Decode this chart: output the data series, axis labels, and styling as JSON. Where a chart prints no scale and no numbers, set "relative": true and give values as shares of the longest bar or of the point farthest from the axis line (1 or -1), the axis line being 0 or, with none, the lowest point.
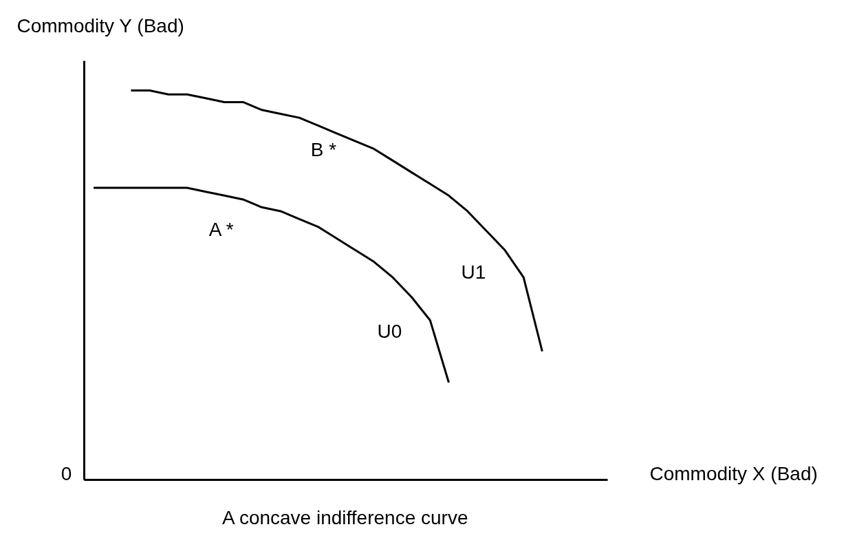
{
  "chart_data": {
    "type": "line",
    "relative": true,
    "title": "A concave indifference curve",
    "xlabel": "Commodity X (Bad)",
    "ylabel": "Commodity Y (Bad)",
    "grid": false,
    "marker": "none",
    "line_style": "solid",
    "categories": [
      null,
      null,
      null,
      null,
      null,
      null,
      null,
      null,
      null,
      null,
      null,
      null,
      null,
      null,
      null,
      null,
      null,
      null,
      null,
      null,
      null,
      null,
      null,
      null,
      null,
      null,
      null,
      null
    ],
    "series": [
      {
        "color": "#000000",
        "values": [
          0.75,
          0.75,
          0.75,
          0.75,
          0.75,
          0.75,
          0.74,
          0.73,
          0.72,
          0.7,
          0.69,
          0.67,
          0.65,
          0.62,
          0.59,
          0.56,
          0.52,
          0.47,
          0.41,
          0.25,
          null,
          null,
          null,
          null,
          null,
          null,
          null,
          null
        ]
      },
      {
        "color": "#000000",
        "values": [
          null,
          null,
          1.0,
          1.0,
          0.99,
          0.99,
          0.98,
          0.97,
          0.97,
          0.95,
          0.94,
          0.93,
          0.91,
          0.89,
          0.87,
          0.85,
          0.82,
          0.79,
          0.76,
          0.73,
          0.69,
          0.64,
          0.59,
          0.52,
          0.33,
          null,
          null,
          null
        ]
      }
    ],
    "annotations": [
      "A *",
      "B *",
      "U0",
      "U1",
      "0"
    ]
  }
}
